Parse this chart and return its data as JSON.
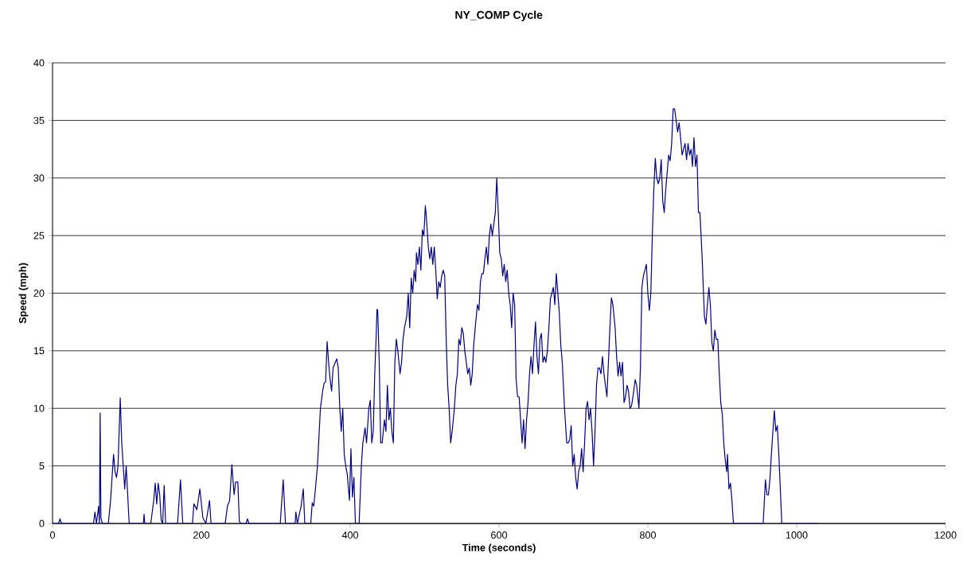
{
  "chart_data": {
    "type": "line",
    "title": "NY_COMP Cycle",
    "xlabel": "Time (seconds)",
    "ylabel": "Speed (mph)",
    "xlim": [
      0,
      1200
    ],
    "ylim": [
      0,
      40
    ],
    "xticks": [
      0,
      200,
      400,
      600,
      800,
      1000,
      1200
    ],
    "yticks": [
      0,
      5,
      10,
      15,
      20,
      25,
      30,
      35,
      40
    ],
    "grid": "y",
    "color": "#000080",
    "x": [
      0,
      8,
      10,
      12,
      55,
      57,
      59,
      62,
      63,
      64,
      65,
      67,
      75,
      78,
      80,
      82,
      84,
      86,
      88,
      91,
      93,
      95,
      97,
      99,
      101,
      103,
      122,
      123,
      124,
      132,
      136,
      138,
      140,
      142,
      144,
      146,
      148,
      150,
      152,
      168,
      172,
      175,
      188,
      190,
      194,
      198,
      202,
      206,
      211,
      213,
      232,
      235,
      238,
      241,
      244,
      246,
      249,
      251,
      253,
      260,
      262,
      264,
      306,
      310,
      313,
      326,
      327,
      329,
      334,
      337,
      339,
      347,
      349,
      351,
      353,
      356,
      360,
      363,
      365,
      367,
      369,
      371,
      373,
      375,
      377,
      380,
      382,
      384,
      386,
      388,
      390,
      392,
      394,
      396,
      399,
      401,
      403,
      405,
      407,
      412,
      415,
      417,
      420,
      422,
      425,
      427,
      429,
      431,
      433,
      435,
      436,
      437,
      439,
      441,
      443,
      446,
      448,
      450,
      452,
      454,
      456,
      458,
      460,
      462,
      464,
      467,
      469,
      471,
      473,
      476,
      478,
      480,
      482,
      484,
      486,
      488,
      489,
      491,
      493,
      495,
      497,
      499,
      501,
      503,
      505,
      507,
      509,
      511,
      513,
      515,
      517,
      519,
      521,
      523,
      525,
      527,
      529,
      531,
      533,
      535,
      537,
      540,
      542,
      544,
      546,
      548,
      550,
      552,
      554,
      556,
      558,
      560,
      562,
      564,
      566,
      568,
      571,
      573,
      575,
      577,
      579,
      581,
      583,
      585,
      587,
      589,
      591,
      593,
      595,
      597,
      599,
      601,
      603,
      605,
      607,
      609,
      611,
      613,
      615,
      617,
      619,
      621,
      623,
      625,
      627,
      629,
      631,
      633,
      635,
      637,
      639,
      641,
      643,
      645,
      647,
      649,
      651,
      653,
      655,
      657,
      659,
      661,
      663,
      665,
      667,
      669,
      671,
      673,
      675,
      677,
      679,
      681,
      683,
      685,
      688,
      691,
      693,
      695,
      697,
      699,
      701,
      703,
      705,
      707,
      709,
      711,
      713,
      715,
      717,
      719,
      721,
      723,
      725,
      727,
      729,
      731,
      733,
      735,
      737,
      739,
      741,
      743,
      745,
      747,
      749,
      751,
      753,
      756,
      758,
      760,
      762,
      764,
      766,
      768,
      770,
      772,
      774,
      776,
      778,
      780,
      783,
      785,
      788,
      790,
      792,
      794,
      796,
      798,
      800,
      802,
      804,
      806,
      808,
      810,
      812,
      814,
      816,
      818,
      820,
      822,
      824,
      826,
      828,
      830,
      832,
      834,
      836,
      838,
      840,
      842,
      844,
      846,
      848,
      850,
      852,
      854,
      856,
      858,
      860,
      862,
      864,
      866,
      868,
      870,
      873,
      876,
      878,
      880,
      882,
      884,
      886,
      888,
      890,
      892,
      894,
      896,
      898,
      900,
      902,
      904,
      906,
      907,
      909,
      911,
      913,
      915,
      955,
      958,
      960,
      962,
      964,
      966,
      968,
      970,
      972,
      974,
      976,
      980,
      1029
    ],
    "values": [
      0,
      0,
      0.4,
      0,
      0,
      1,
      0,
      1.5,
      0,
      9.6,
      0.5,
      0,
      0,
      2,
      4,
      6,
      4.5,
      4,
      5,
      10.9,
      7,
      5,
      3,
      5,
      2.5,
      0,
      0,
      0.8,
      0,
      0,
      2,
      3.5,
      1.7,
      3.5,
      2.5,
      0.3,
      0,
      3.3,
      0,
      0,
      3.8,
      0,
      0,
      1.7,
      1.2,
      3,
      0.5,
      0,
      2,
      0,
      0,
      1.5,
      2,
      5.1,
      2.5,
      3.6,
      3.6,
      0.2,
      0,
      0,
      0.4,
      0,
      0,
      3.8,
      0,
      0,
      1,
      0,
      1.5,
      3,
      0,
      0,
      1.8,
      1.5,
      2.8,
      5,
      10,
      11.5,
      12.2,
      12.3,
      15.8,
      14,
      12.5,
      11.5,
      13.5,
      14,
      14.3,
      13.5,
      10,
      8,
      10,
      6,
      5,
      4.3,
      2,
      6.5,
      2.3,
      4,
      0,
      0,
      5,
      7,
      8.3,
      7,
      10,
      10.7,
      7,
      8,
      13,
      16.5,
      18.6,
      18.5,
      14,
      7,
      7,
      9,
      8,
      12,
      9,
      10,
      8,
      7,
      14,
      16,
      15,
      13,
      14,
      16,
      17,
      18,
      20,
      17,
      21.3,
      20,
      22,
      21,
      23.5,
      22.5,
      24,
      22,
      25.5,
      25,
      27.6,
      26,
      24,
      23,
      24,
      22.5,
      24,
      22,
      19.5,
      21,
      20.5,
      21.5,
      22,
      21.5,
      16,
      12,
      10,
      7,
      8,
      10,
      12,
      13,
      16,
      15.5,
      17,
      16.5,
      15,
      14,
      13,
      13.5,
      12,
      13,
      15.5,
      17,
      19,
      18.5,
      21,
      21.7,
      21.7,
      23,
      24,
      22.5,
      25,
      26,
      25,
      26,
      27,
      30,
      27,
      23.5,
      23,
      21.5,
      22.5,
      21,
      22,
      20,
      19,
      17,
      20,
      19,
      12.5,
      11,
      11,
      9,
      7,
      9,
      6.5,
      9,
      10.5,
      13,
      14.5,
      13,
      15.5,
      17.5,
      14.5,
      13,
      16,
      16.5,
      14,
      14.5,
      14,
      15,
      17,
      19.5,
      20,
      20.5,
      19,
      21.7,
      20,
      18.3,
      15.5,
      14,
      10,
      7,
      7,
      7.3,
      8.5,
      5,
      6,
      4,
      3,
      4.5,
      5,
      6.5,
      4.5,
      7,
      10,
      10.6,
      9,
      10,
      8,
      5,
      8,
      12,
      13.5,
      13.5,
      13,
      14.5,
      13,
      12,
      11,
      14,
      17,
      19.6,
      19,
      17,
      14.5,
      12.8,
      14,
      12.8,
      14,
      10.5,
      11,
      12,
      11.5,
      10,
      10.2,
      11,
      12.5,
      12,
      10,
      13.5,
      20.5,
      21.5,
      22,
      22.5,
      20,
      18.5,
      20,
      25,
      29,
      31.7,
      30,
      29.5,
      30,
      31.6,
      28,
      27,
      29,
      30.5,
      32,
      31.5,
      33,
      36,
      36,
      35,
      34,
      34.8,
      33.5,
      32,
      32.5,
      33,
      31.6,
      33,
      32,
      32.5,
      31,
      33.5,
      31,
      32,
      27,
      27,
      23,
      18,
      17.3,
      19,
      20.5,
      19,
      15.7,
      15,
      16.8,
      16,
      16,
      13,
      10.5,
      9.5,
      7,
      5.5,
      4.5,
      6,
      3,
      3.5,
      2,
      0,
      0,
      3.8,
      2.5,
      2.5,
      3.8,
      6,
      8,
      9.8,
      8,
      8.5,
      6,
      0,
      0
    ]
  }
}
